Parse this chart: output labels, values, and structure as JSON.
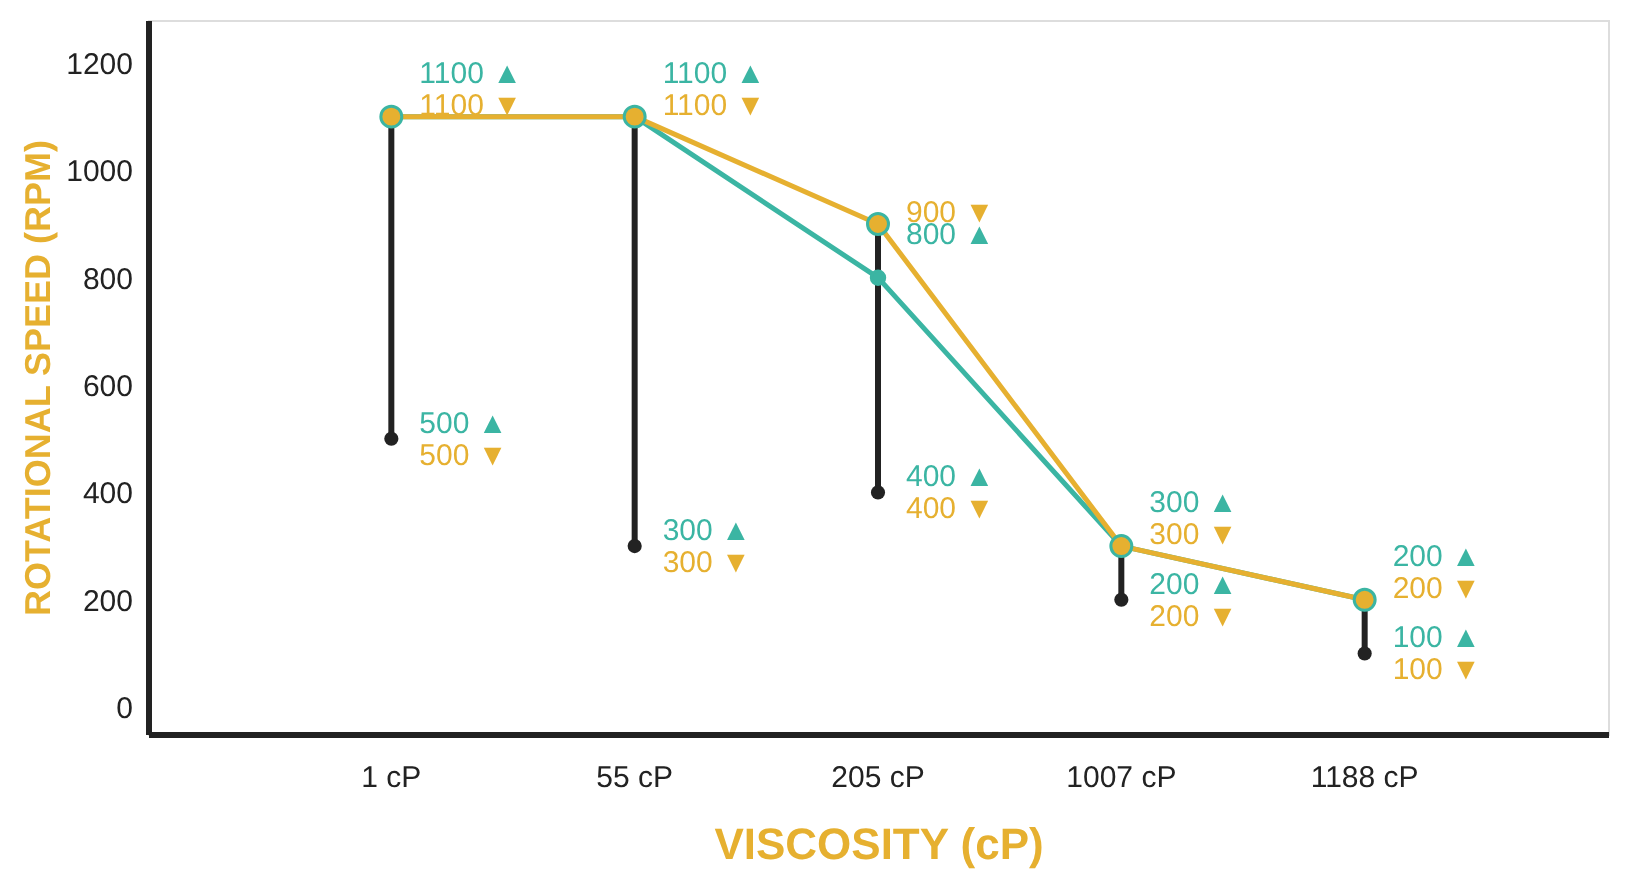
{
  "chart_data": {
    "type": "line",
    "xlabel": "VISCOSITY (cP)",
    "ylabel": "ROTATIONAL SPEED (RPM)",
    "categories": [
      "1 cP",
      "55 cP",
      "205 cP",
      "1007 cP",
      "1188 cP"
    ],
    "series": [
      {
        "color": "#3bb5a3",
        "values": [
          1100,
          1100,
          800,
          300,
          200
        ],
        "value_labels": [
          "1100 ▲",
          "1100 ▲",
          "800 ▲",
          "300 ▲",
          "200 ▲"
        ]
      },
      {
        "color": "#e6b030",
        "values": [
          1100,
          1100,
          900,
          300,
          200
        ],
        "value_labels": [
          "1100 ▼",
          "1100 ▼",
          "900 ▼",
          "300 ▼",
          "200 ▼"
        ],
        "errors": [
          [
            500,
            1100
          ],
          [
            300,
            1100
          ],
          [
            400,
            900
          ],
          [
            200,
            300
          ],
          [
            100,
            200
          ]
        ]
      }
    ],
    "annotations": [
      {
        "text": "500 ▲",
        "x": "1 cP",
        "y": 500
      },
      {
        "text": "500 ▼",
        "x": "1 cP",
        "y": 500
      },
      {
        "text": "300 ▲",
        "x": "55 cP",
        "y": 300
      },
      {
        "text": "300 ▼",
        "x": "55 cP",
        "y": 300
      },
      {
        "text": "400 ▲",
        "x": "205 cP",
        "y": 400
      },
      {
        "text": "400 ▼",
        "x": "205 cP",
        "y": 400
      },
      {
        "text": "200 ▲",
        "x": "1007 cP",
        "y": 200
      },
      {
        "text": "200 ▼",
        "x": "1007 cP",
        "y": 200
      },
      {
        "text": "100 ▲",
        "x": "1188 cP",
        "y": 100
      },
      {
        "text": "100 ▼",
        "x": "1188 cP",
        "y": 100
      }
    ],
    "ylim": [
      -50,
      1280
    ],
    "yticks": [
      0,
      200,
      400,
      600,
      800,
      1000,
      1200
    ],
    "grid": false,
    "marker": "circle",
    "line_style": "solid"
  }
}
